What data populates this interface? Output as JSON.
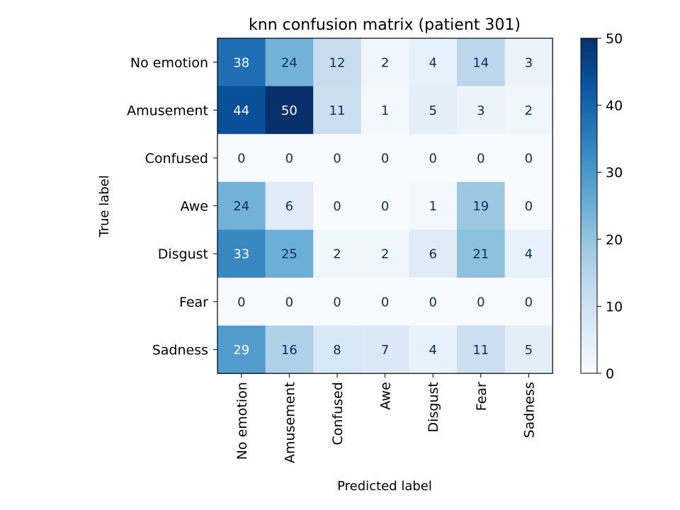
{
  "chart_data": {
    "type": "heatmap",
    "title": "knn confusion matrix (patient 301)",
    "xlabel": "Predicted label",
    "ylabel": "True label",
    "x_categories": [
      "No emotion",
      "Amusement",
      "Confused",
      "Awe",
      "Disgust",
      "Fear",
      "Sadness"
    ],
    "y_categories": [
      "No emotion",
      "Amusement",
      "Confused",
      "Awe",
      "Disgust",
      "Fear",
      "Sadness"
    ],
    "values": [
      [
        38,
        24,
        12,
        2,
        4,
        14,
        3
      ],
      [
        44,
        50,
        11,
        1,
        5,
        3,
        2
      ],
      [
        0,
        0,
        0,
        0,
        0,
        0,
        0
      ],
      [
        24,
        6,
        0,
        0,
        1,
        19,
        0
      ],
      [
        33,
        25,
        2,
        2,
        6,
        21,
        4
      ],
      [
        0,
        0,
        0,
        0,
        0,
        0,
        0
      ],
      [
        29,
        16,
        8,
        7,
        4,
        11,
        5
      ]
    ],
    "colormap": "Blues",
    "colorbar": {
      "range": [
        0,
        50
      ],
      "ticks": [
        0,
        10,
        20,
        30,
        40,
        50
      ]
    },
    "colors": {
      "low": "#f7fbff",
      "high": "#08306b",
      "text_dark": "#08306b",
      "text_light": "#ffffff"
    }
  }
}
